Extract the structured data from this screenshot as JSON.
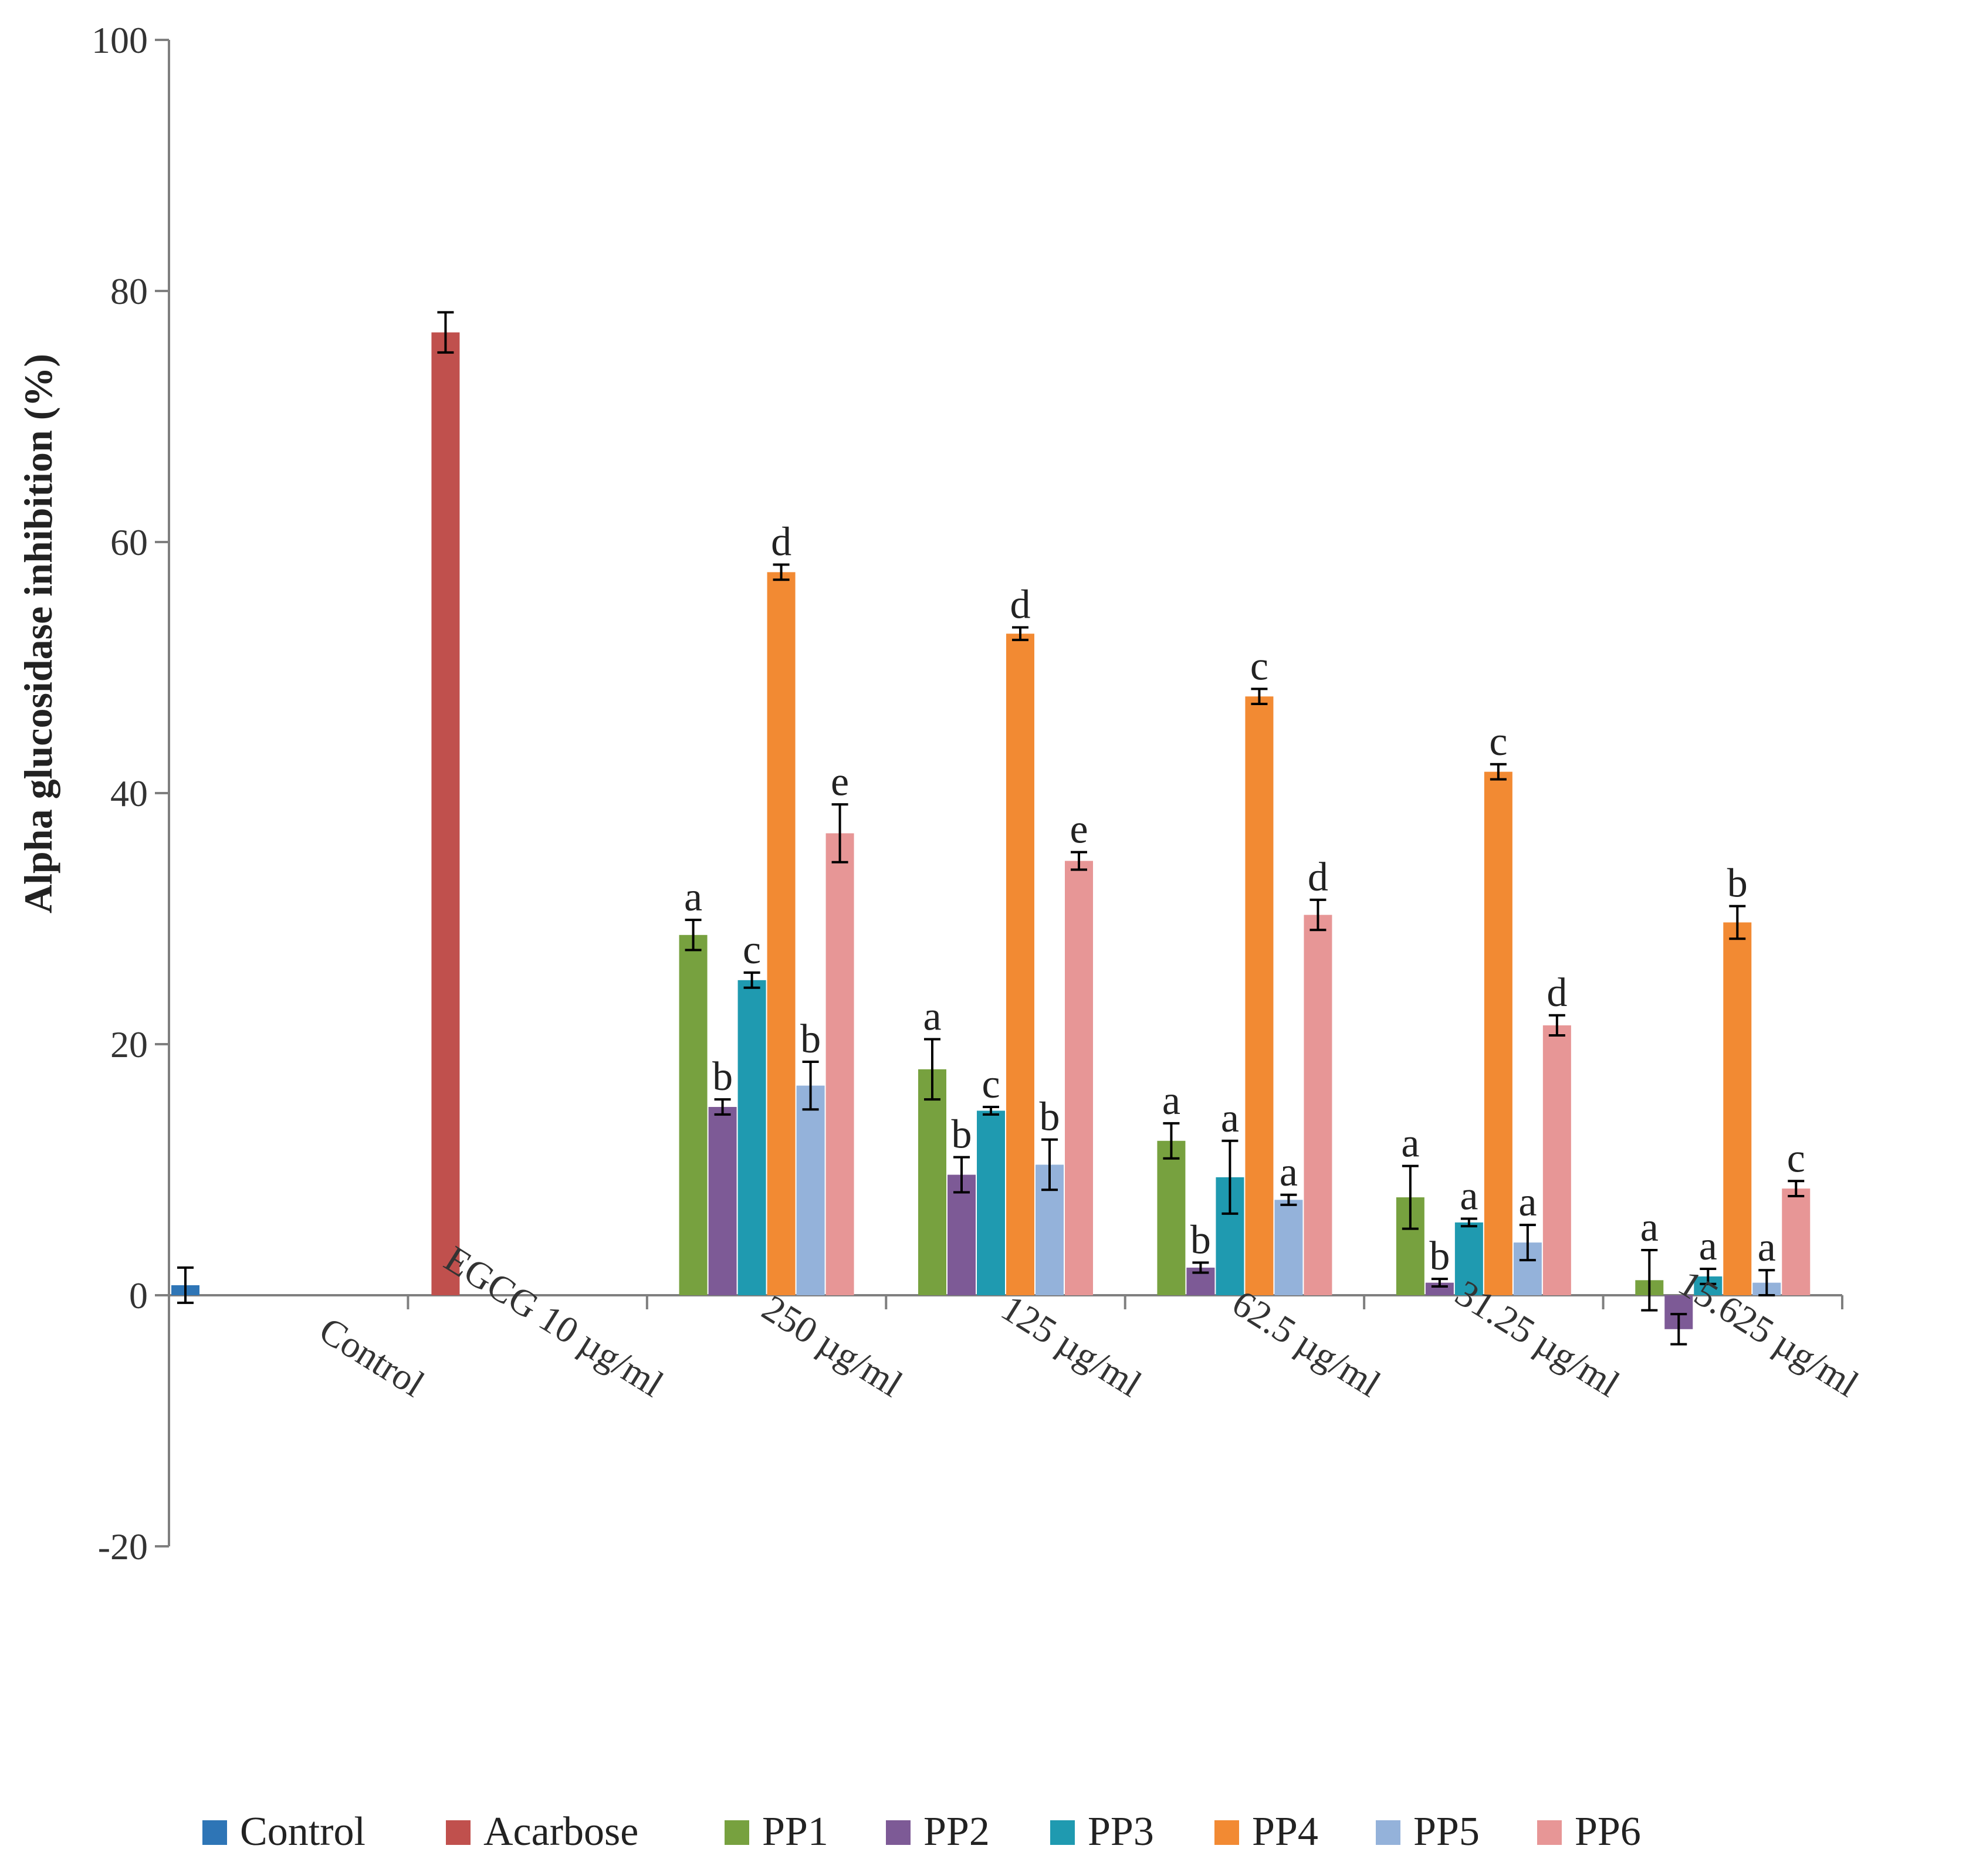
{
  "chart_data": {
    "type": "bar",
    "title": "",
    "xlabel": "",
    "ylabel": "Alpha glucosidase inhibition (%)",
    "ylim": [
      -20,
      100
    ],
    "yticks": [
      -20,
      0,
      20,
      40,
      60,
      80,
      100
    ],
    "grid": false,
    "legend_position": "bottom",
    "categories": [
      "Control",
      "EGCG 10 µg/ml",
      "250 µg/ml",
      "125 µg/ml",
      "62.5 µg/ml",
      "31.25 µg/ml",
      "15.625 µg/ml"
    ],
    "series": [
      {
        "name": "Control",
        "color": "#2E75B6",
        "values": [
          0.8,
          null,
          null,
          null,
          null,
          null,
          null
        ],
        "errors": [
          1.4,
          null,
          null,
          null,
          null,
          null,
          null
        ],
        "labels": [
          "",
          "",
          "",
          "",
          "",
          "",
          ""
        ]
      },
      {
        "name": "Acarbose",
        "color": "#C0504D",
        "values": [
          null,
          76.7,
          null,
          null,
          null,
          null,
          null
        ],
        "errors": [
          null,
          1.6,
          null,
          null,
          null,
          null,
          null
        ],
        "labels": [
          "",
          "",
          "",
          "",
          "",
          "",
          ""
        ]
      },
      {
        "name": "PP1",
        "color": "#77A13F",
        "values": [
          null,
          null,
          28.7,
          18.0,
          12.3,
          7.8,
          1.2
        ],
        "errors": [
          null,
          null,
          1.2,
          2.4,
          1.4,
          2.5,
          2.4
        ],
        "labels": [
          "",
          "",
          "a",
          "a",
          "a",
          "a",
          "a"
        ]
      },
      {
        "name": "PP2",
        "color": "#7D5A96",
        "values": [
          null,
          null,
          15.0,
          9.6,
          2.2,
          1.0,
          -2.7
        ],
        "errors": [
          null,
          null,
          0.6,
          1.4,
          0.4,
          0.3,
          1.2
        ],
        "labels": [
          "",
          "",
          "b",
          "b",
          "b",
          "b",
          ""
        ]
      },
      {
        "name": "PP3",
        "color": "#1F9AB0",
        "values": [
          null,
          null,
          25.1,
          14.7,
          9.4,
          5.8,
          1.5
        ],
        "errors": [
          null,
          null,
          0.6,
          0.3,
          2.9,
          0.3,
          0.6
        ],
        "labels": [
          "",
          "",
          "c",
          "c",
          "a",
          "a",
          "a"
        ]
      },
      {
        "name": "PP4",
        "color": "#F28A33",
        "values": [
          null,
          null,
          57.6,
          52.7,
          47.7,
          41.7,
          29.7
        ],
        "errors": [
          null,
          null,
          0.6,
          0.5,
          0.6,
          0.6,
          1.3
        ],
        "labels": [
          "",
          "",
          "d",
          "d",
          "c",
          "c",
          "b"
        ]
      },
      {
        "name": "PP5",
        "color": "#94B2DA",
        "values": [
          null,
          null,
          16.7,
          10.4,
          7.6,
          4.2,
          1.0
        ],
        "errors": [
          null,
          null,
          1.9,
          2.0,
          0.4,
          1.4,
          1.0
        ],
        "labels": [
          "",
          "",
          "b",
          "b",
          "a",
          "a",
          "a"
        ]
      },
      {
        "name": "PP6",
        "color": "#E79696",
        "values": [
          null,
          null,
          36.8,
          34.6,
          30.3,
          21.5,
          8.5
        ],
        "errors": [
          null,
          null,
          2.3,
          0.7,
          1.2,
          0.8,
          0.6
        ],
        "labels": [
          "",
          "",
          "e",
          "e",
          "d",
          "d",
          "c"
        ]
      }
    ]
  }
}
